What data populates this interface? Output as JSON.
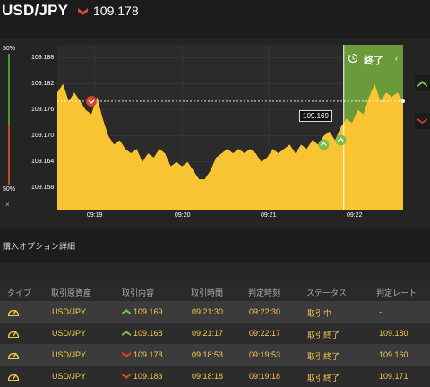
{
  "header": {
    "pair": "USD/JPY",
    "direction_icon": "down-arrow-icon",
    "price": "109.178"
  },
  "gauge": {
    "top_label": "50%",
    "bottom_label": "50%",
    "close_label": "×"
  },
  "chart_data": {
    "type": "area",
    "y_ticks": [
      "109.188",
      "109.182",
      "109.176",
      "109.170",
      "109.164",
      "109.158"
    ],
    "x_ticks": [
      "09:19",
      "09:20",
      "09:21",
      "09:22"
    ],
    "ylim": [
      109.153,
      109.191
    ],
    "current_price": 109.178,
    "tooltip": "109.169",
    "series": [
      {
        "values": [
          109.18,
          109.182,
          109.178,
          109.18,
          109.178,
          109.176,
          109.175,
          109.179,
          109.174,
          109.17,
          109.168,
          109.169,
          109.167,
          109.166,
          109.167,
          109.164,
          109.166,
          109.165,
          109.167,
          109.166,
          109.163,
          109.164,
          109.163,
          109.164,
          109.162,
          109.16,
          109.16,
          109.162,
          109.165,
          109.166,
          109.167,
          109.166,
          109.167,
          109.166,
          109.167,
          109.166,
          109.164,
          109.165,
          109.167,
          109.166,
          109.167,
          109.168,
          109.166,
          109.168,
          109.167,
          109.169,
          109.168,
          109.17,
          109.171,
          109.169,
          109.172,
          109.174,
          109.173,
          109.176,
          109.175,
          109.179,
          109.182,
          109.178,
          109.18,
          109.179,
          109.18,
          109.178
        ]
      }
    ],
    "markers": [
      {
        "type": "down",
        "x_index": 6,
        "price": 109.178
      },
      {
        "type": "up",
        "x_index": 47,
        "price": 109.168
      },
      {
        "type": "up",
        "x_index": 50,
        "price": 109.169
      }
    ],
    "expiry_zone": {
      "from_index": 51,
      "to_index": 61
    }
  },
  "exit_button": {
    "label": "終了",
    "icon": "refresh-icon",
    "chevron": "‹"
  },
  "section_title": "購入オプション詳細",
  "table": {
    "headers": [
      "タイプ",
      "取引原資産",
      "取引内容",
      "取引時間",
      "判定時刻",
      "ステータス",
      "判定レート"
    ],
    "rows": [
      {
        "asset": "USD/JPY",
        "direction": "up",
        "content": "109.169",
        "trade_time": "09:21:30",
        "judge_time": "09:22:30",
        "status": "取引中",
        "rate": "-"
      },
      {
        "asset": "USD/JPY",
        "direction": "up",
        "content": "109.168",
        "trade_time": "09:21:17",
        "judge_time": "09:22:17",
        "status": "取引終了",
        "rate": "109.180"
      },
      {
        "asset": "USD/JPY",
        "direction": "down",
        "content": "109.178",
        "trade_time": "09:18:53",
        "judge_time": "09:19:53",
        "status": "取引終了",
        "rate": "109.160"
      },
      {
        "asset": "USD/JPY",
        "direction": "down",
        "content": "109.183",
        "trade_time": "09:18:18",
        "judge_time": "09:19:18",
        "status": "取引終了",
        "rate": "109.171"
      }
    ]
  },
  "colors": {
    "area": "#f8c432",
    "up": "#7cbd4a",
    "down": "#d4452f",
    "expiry_zone": "#6a9a3a"
  }
}
